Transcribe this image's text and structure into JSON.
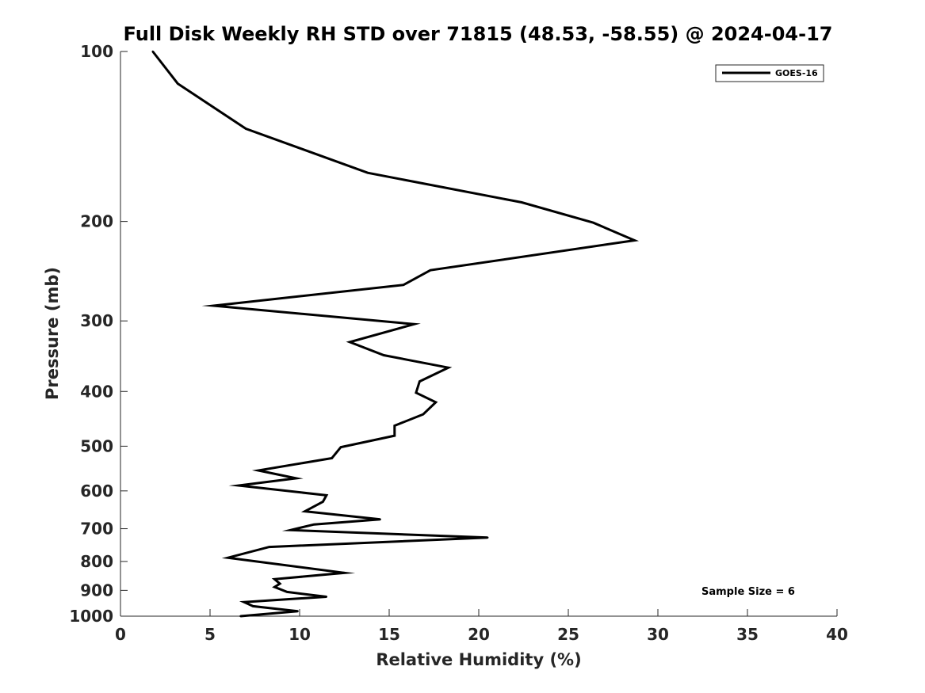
{
  "chart_data": {
    "type": "line",
    "title": "Full Disk Weekly RH STD over 71815 (48.53, -58.55) @ 2024-04-17",
    "xlabel": "Relative Humidity (%)",
    "ylabel": "Pressure (mb)",
    "xlim": [
      0,
      40
    ],
    "ylim": [
      100,
      1000
    ],
    "yscale": "log",
    "y_reversed": true,
    "xticks": [
      0,
      5,
      10,
      15,
      20,
      25,
      30,
      35,
      40
    ],
    "yticks": [
      100,
      200,
      300,
      400,
      500,
      600,
      700,
      800,
      900,
      1000
    ],
    "grid": false,
    "legend": {
      "position": "top-right",
      "entries": [
        "GOES-16"
      ]
    },
    "annotation": "Sample Size = 6",
    "series": [
      {
        "name": "GOES-16",
        "color": "#000000",
        "x": [
          1.8,
          3.2,
          7.0,
          13.8,
          22.4,
          26.4,
          28.7,
          17.3,
          15.8,
          5.2,
          16.4,
          12.8,
          14.7,
          18.3,
          16.7,
          16.5,
          17.6,
          16.9,
          15.3,
          15.3,
          12.3,
          11.8,
          7.7,
          9.8,
          6.6,
          11.5,
          11.3,
          10.3,
          14.5,
          10.8,
          9.5,
          20.5,
          8.3,
          6.0,
          12.5,
          8.6,
          8.9,
          8.6,
          9.3,
          11.5,
          6.9,
          7.4,
          9.9,
          6.7
        ],
        "y": [
          100,
          114,
          137,
          164,
          185,
          201,
          216,
          244,
          259,
          282,
          304,
          327,
          345,
          363,
          384,
          402,
          418,
          439,
          460,
          479,
          502,
          525,
          552,
          570,
          587,
          611,
          627,
          652,
          674,
          688,
          704,
          726,
          754,
          788,
          838,
          860,
          876,
          888,
          906,
          924,
          944,
          960,
          980,
          1000
        ]
      }
    ]
  }
}
